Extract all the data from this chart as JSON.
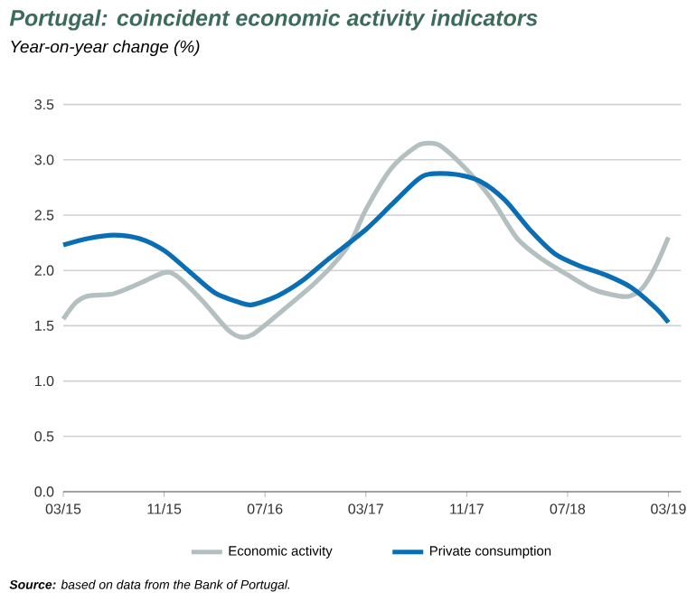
{
  "chart_data": {
    "type": "line",
    "title": "Portugal: coincident economic activity indicators",
    "subtitle": "Year-on-year change (%)",
    "xlim": [
      "2015-03",
      "2019-04"
    ],
    "xticks": [
      {
        "value": "2015-03",
        "label": "03/15"
      },
      {
        "value": "2015-11",
        "label": "11/15"
      },
      {
        "value": "2016-07",
        "label": "07/16"
      },
      {
        "value": "2017-03",
        "label": "03/17"
      },
      {
        "value": "2017-11",
        "label": "11/17"
      },
      {
        "value": "2018-07",
        "label": "07/18"
      },
      {
        "value": "2019-03",
        "label": "03/19"
      }
    ],
    "ylim": [
      0,
      3.5
    ],
    "yticks": [
      {
        "value": 0,
        "label": "0.0"
      },
      {
        "value": 0.5,
        "label": "0.5"
      },
      {
        "value": 1,
        "label": "1.0"
      },
      {
        "value": 1.5,
        "label": "1.5"
      },
      {
        "value": 2,
        "label": "2.0"
      },
      {
        "value": 2.5,
        "label": "2.5"
      },
      {
        "value": 3,
        "label": "3.0"
      },
      {
        "value": 3.5,
        "label": "3.5"
      }
    ],
    "grid": "y",
    "legend": "bottom",
    "marker": "none",
    "line_style": "solid",
    "series": [
      {
        "name": "Economic activity",
        "color": "#b4c0c0",
        "x": [
          "2015-03",
          "2015-04",
          "2015-05",
          "2015-07",
          "2015-09",
          "2015-11",
          "2015-12",
          "2016-02",
          "2016-04",
          "2016-05",
          "2016-06",
          "2016-08",
          "2016-11",
          "2017-01",
          "2017-02",
          "2017-03",
          "2017-05",
          "2017-07",
          "2017-08",
          "2017-09",
          "2017-11",
          "2018-01",
          "2018-03",
          "2018-05",
          "2018-07",
          "2018-09",
          "2018-11",
          "2018-12",
          "2019-01",
          "2019-02",
          "2019-03"
        ],
        "values": [
          1.56,
          1.71,
          1.77,
          1.79,
          1.88,
          1.98,
          1.95,
          1.73,
          1.47,
          1.4,
          1.42,
          1.6,
          1.89,
          2.13,
          2.3,
          2.55,
          2.92,
          3.12,
          3.15,
          3.12,
          2.91,
          2.64,
          2.29,
          2.1,
          1.96,
          1.83,
          1.77,
          1.77,
          1.85,
          2.04,
          2.3
        ]
      },
      {
        "name": "Private consumption",
        "color": "#0a6eb4",
        "x": [
          "2015-03",
          "2015-05",
          "2015-07",
          "2015-09",
          "2015-11",
          "2016-01",
          "2016-03",
          "2016-05",
          "2016-06",
          "2016-08",
          "2016-10",
          "2016-12",
          "2017-03",
          "2017-05",
          "2017-07",
          "2017-08",
          "2017-10",
          "2017-12",
          "2018-02",
          "2018-04",
          "2018-06",
          "2018-08",
          "2018-10",
          "2018-12",
          "2019-02",
          "2019-03"
        ],
        "values": [
          2.23,
          2.29,
          2.32,
          2.29,
          2.18,
          1.99,
          1.8,
          1.71,
          1.69,
          1.77,
          1.91,
          2.1,
          2.37,
          2.59,
          2.81,
          2.87,
          2.87,
          2.81,
          2.64,
          2.37,
          2.15,
          2.04,
          1.96,
          1.85,
          1.66,
          1.53
        ]
      }
    ],
    "annotations": [
      "**Source:** based on data from the Bank of Portugal."
    ]
  }
}
